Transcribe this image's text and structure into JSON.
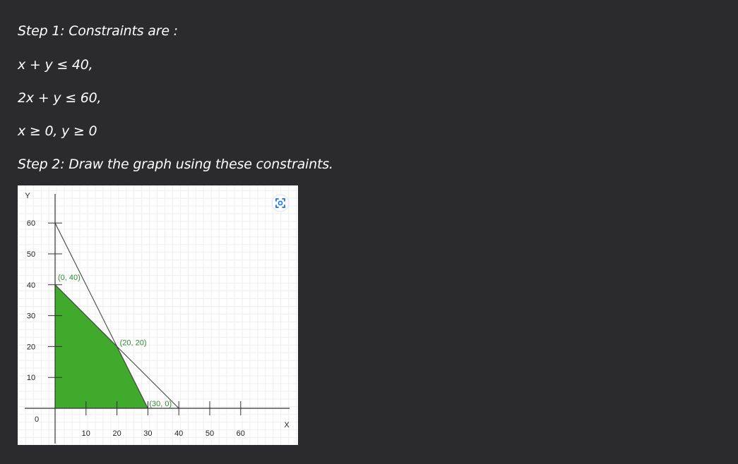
{
  "text": {
    "step1": "Step 1: Constraints are :",
    "c1": "x + y ≤ 40,",
    "c2": "2x + y ≤ 60,",
    "c3": "x ≥ 0, y ≥ 0",
    "step2": "Step 2: Draw the graph using these constraints."
  },
  "icons": {
    "corner": "lens-icon"
  },
  "chart_data": {
    "type": "area",
    "xlabel": "X",
    "ylabel": "Y",
    "origin_label": "0",
    "xlim": [
      0,
      75
    ],
    "ylim": [
      0,
      65
    ],
    "x_ticks": [
      10,
      20,
      30,
      40,
      50,
      60
    ],
    "y_ticks": [
      10,
      20,
      30,
      40,
      50,
      60
    ],
    "grid": true,
    "lines": [
      {
        "points": [
          [
            0,
            60
          ],
          [
            30,
            0
          ]
        ]
      },
      {
        "points": [
          [
            0,
            40
          ],
          [
            40,
            0
          ]
        ]
      }
    ],
    "feasible_region": {
      "points": [
        [
          0,
          0
        ],
        [
          0,
          40
        ],
        [
          20,
          20
        ],
        [
          30,
          0
        ]
      ],
      "color": "#3faa2c"
    },
    "point_labels": [
      {
        "text": "(0, 40)",
        "x": 0,
        "y": 40
      },
      {
        "text": "(20, 20)",
        "x": 20,
        "y": 20
      },
      {
        "text": "(30, 0)",
        "x": 30,
        "y": 0
      }
    ]
  }
}
